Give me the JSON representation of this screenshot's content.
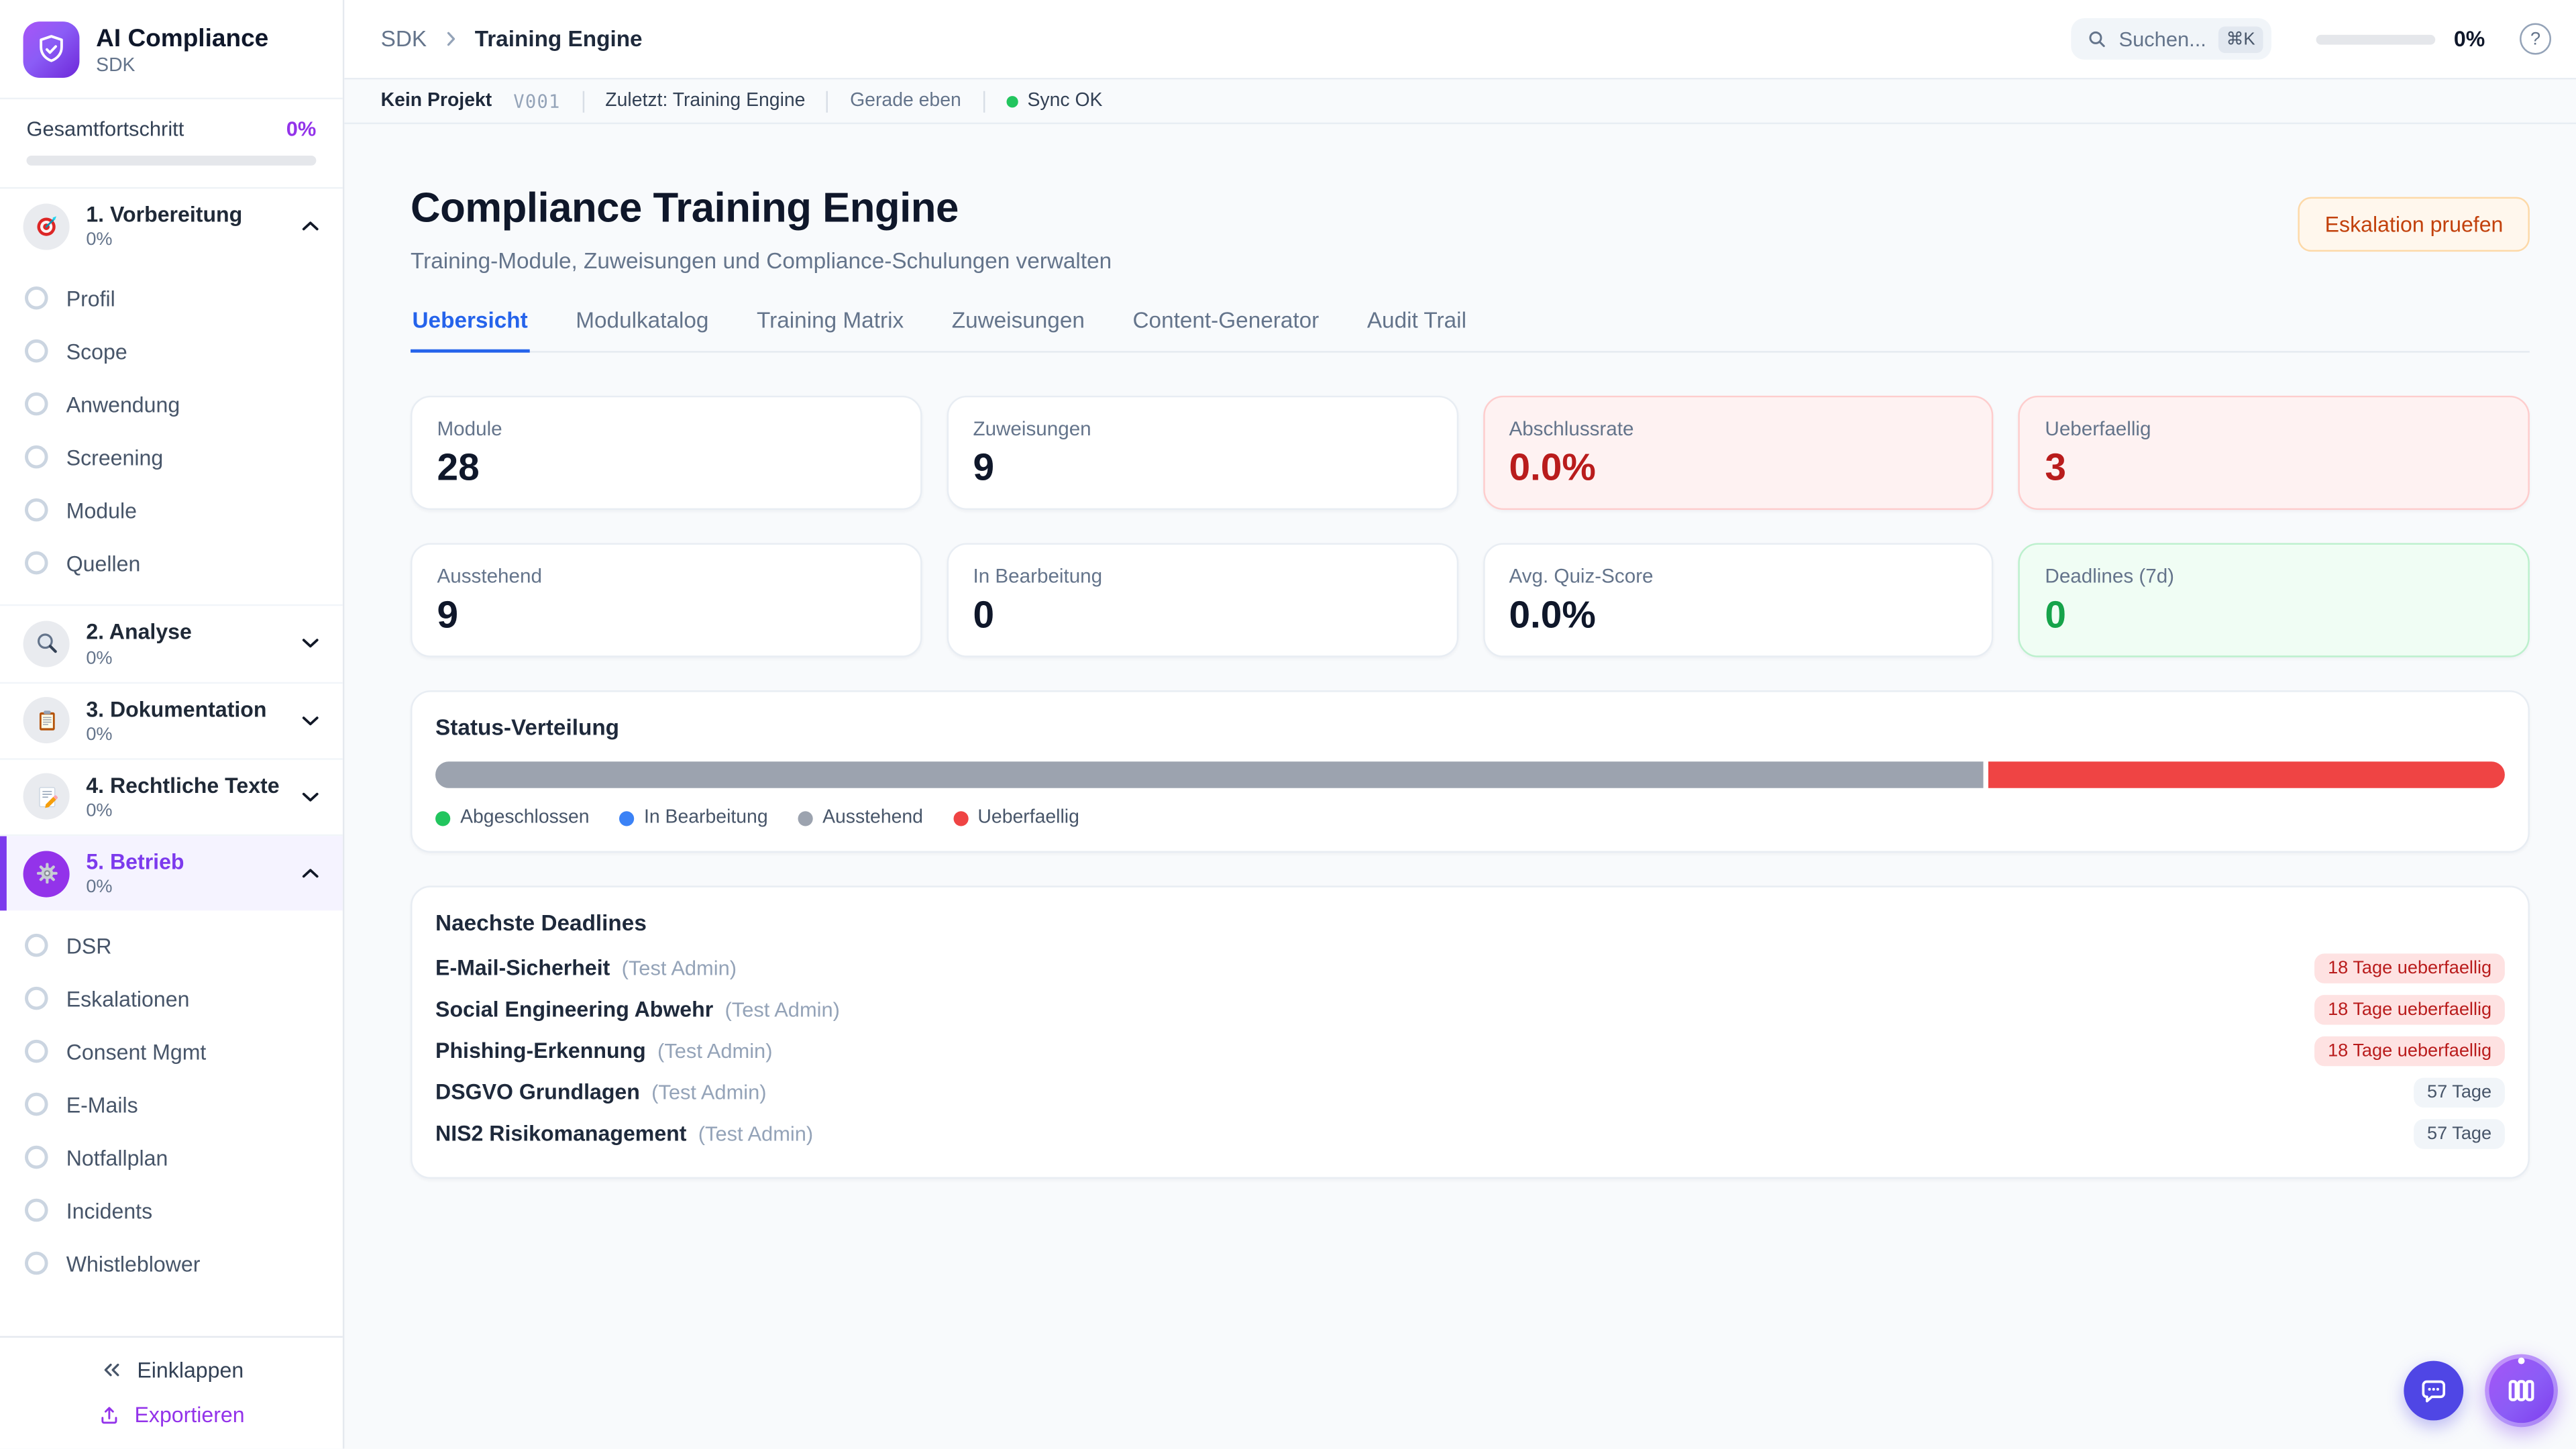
{
  "colors": {
    "accent_purple": "#7c3aed",
    "accent_blue": "#2563eb",
    "danger_red": "#b91c1c",
    "success_green": "#16a34a",
    "warn_orange": "#c2410c",
    "bar_gray": "#9ca3af",
    "bar_red": "#ef4444",
    "sync_green": "#22c55e"
  },
  "sidebar": {
    "app_name": "AI Compliance",
    "app_subtitle": "SDK",
    "logo_icon": "shield-check-icon",
    "progress_label": "Gesamtfortschritt",
    "progress_value": "0%",
    "progress_percent": 0,
    "groups": [
      {
        "label": "1. Vorbereitung",
        "percent": "0%",
        "icon": "target-icon",
        "expanded": true,
        "active": false,
        "items": [
          "Profil",
          "Scope",
          "Anwendung",
          "Screening",
          "Module",
          "Quellen"
        ]
      },
      {
        "label": "2. Analyse",
        "percent": "0%",
        "icon": "magnifier-icon",
        "expanded": false,
        "active": false,
        "items": []
      },
      {
        "label": "3. Dokumentation",
        "percent": "0%",
        "icon": "clipboard-icon",
        "expanded": false,
        "active": false,
        "items": []
      },
      {
        "label": "4. Rechtliche Texte",
        "percent": "0%",
        "icon": "memo-icon",
        "expanded": false,
        "active": false,
        "items": []
      },
      {
        "label": "5. Betrieb",
        "percent": "0%",
        "icon": "gear-icon",
        "expanded": true,
        "active": true,
        "items": [
          "DSR",
          "Eskalationen",
          "Consent Mgmt",
          "E-Mails",
          "Notfallplan",
          "Incidents",
          "Whistleblower"
        ]
      }
    ],
    "collapse_label": "Einklappen",
    "export_label": "Exportieren"
  },
  "header": {
    "breadcrumb_root": "SDK",
    "breadcrumb_current": "Training Engine",
    "search_placeholder": "Suchen...",
    "search_shortcut": "⌘K",
    "progress_value": "0%",
    "progress_percent": 0,
    "help_glyph": "?",
    "status": {
      "project": "Kein Projekt",
      "version": "V001",
      "last": "Zuletzt: Training Engine",
      "time": "Gerade eben",
      "sync": "Sync OK"
    }
  },
  "page": {
    "title": "Compliance Training Engine",
    "subtitle": "Training-Module, Zuweisungen und Compliance-Schulungen verwalten",
    "action_button": "Eskalation pruefen",
    "tabs": [
      {
        "label": "Uebersicht",
        "active": true
      },
      {
        "label": "Modulkatalog",
        "active": false
      },
      {
        "label": "Training Matrix",
        "active": false
      },
      {
        "label": "Zuweisungen",
        "active": false
      },
      {
        "label": "Content-Generator",
        "active": false
      },
      {
        "label": "Audit Trail",
        "active": false
      }
    ]
  },
  "stats": [
    {
      "label": "Module",
      "value": "28",
      "variant": "default"
    },
    {
      "label": "Zuweisungen",
      "value": "9",
      "variant": "default"
    },
    {
      "label": "Abschlussrate",
      "value": "0.0%",
      "variant": "danger"
    },
    {
      "label": "Ueberfaellig",
      "value": "3",
      "variant": "danger"
    },
    {
      "label": "Ausstehend",
      "value": "9",
      "variant": "default"
    },
    {
      "label": "In Bearbeitung",
      "value": "0",
      "variant": "default"
    },
    {
      "label": "Avg. Quiz-Score",
      "value": "0.0%",
      "variant": "default"
    },
    {
      "label": "Deadlines (7d)",
      "value": "0",
      "variant": "success"
    }
  ],
  "status_distribution": {
    "title": "Status-Verteilung",
    "segments": [
      {
        "label": "Ausstehend",
        "percent": 75,
        "color": "#9ca3af"
      },
      {
        "label": "Ueberfaellig",
        "percent": 25,
        "color": "#ef4444"
      }
    ],
    "legend": [
      {
        "label": "Abgeschlossen",
        "color": "#22c55e"
      },
      {
        "label": "In Bearbeitung",
        "color": "#3b82f6"
      },
      {
        "label": "Ausstehend",
        "color": "#9ca3af"
      },
      {
        "label": "Ueberfaellig",
        "color": "#ef4444"
      }
    ]
  },
  "deadlines": {
    "title": "Naechste Deadlines",
    "rows": [
      {
        "module": "E-Mail-Sicherheit",
        "assignee": "(Test Admin)",
        "badge": "18 Tage ueberfaellig",
        "variant": "danger"
      },
      {
        "module": "Social Engineering Abwehr",
        "assignee": "(Test Admin)",
        "badge": "18 Tage ueberfaellig",
        "variant": "danger"
      },
      {
        "module": "Phishing-Erkennung",
        "assignee": "(Test Admin)",
        "badge": "18 Tage ueberfaellig",
        "variant": "danger"
      },
      {
        "module": "DSGVO Grundlagen",
        "assignee": "(Test Admin)",
        "badge": "57 Tage",
        "variant": "neutral"
      },
      {
        "module": "NIS2 Risikomanagement",
        "assignee": "(Test Admin)",
        "badge": "57 Tage",
        "variant": "neutral"
      }
    ]
  }
}
